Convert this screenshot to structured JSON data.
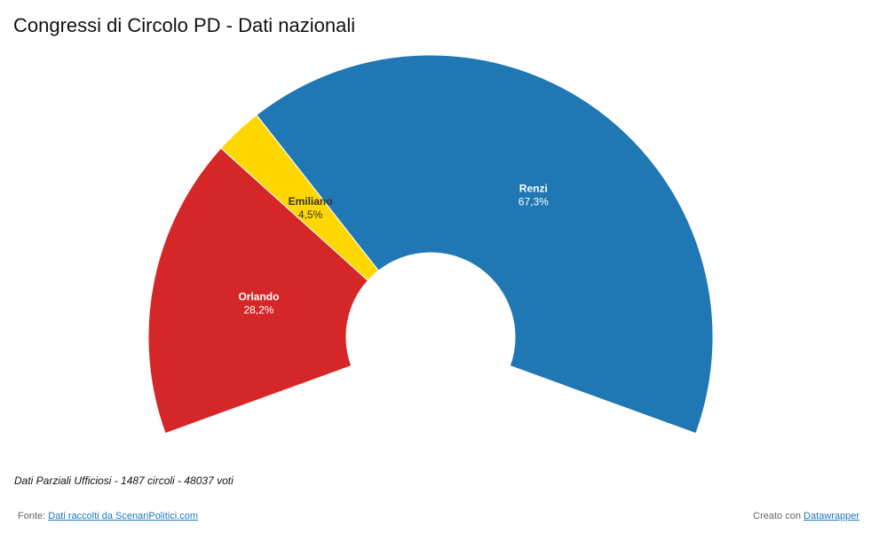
{
  "chart_data": {
    "type": "pie",
    "variant": "half-donut",
    "title": "Congressi di Circolo PD - Dati nazionali",
    "slices": [
      {
        "name": "Orlando",
        "value": 28.2,
        "label": "28,2%",
        "color": "#d62728"
      },
      {
        "name": "Emiliano",
        "value": 4.5,
        "label": "4,5%",
        "color": "#ffd700"
      },
      {
        "name": "Renzi",
        "value": 67.3,
        "label": "67,3%",
        "color": "#1f77b4"
      }
    ],
    "note": "Dati Parziali Ufficiosi - 1487 circoli - 48037 voti"
  },
  "footer": {
    "source_prefix": "Fonte:",
    "source_link": "Dati raccolti da ScenariPolitici.com",
    "credit_prefix": "Creato con",
    "credit_link": "Datawrapper"
  }
}
